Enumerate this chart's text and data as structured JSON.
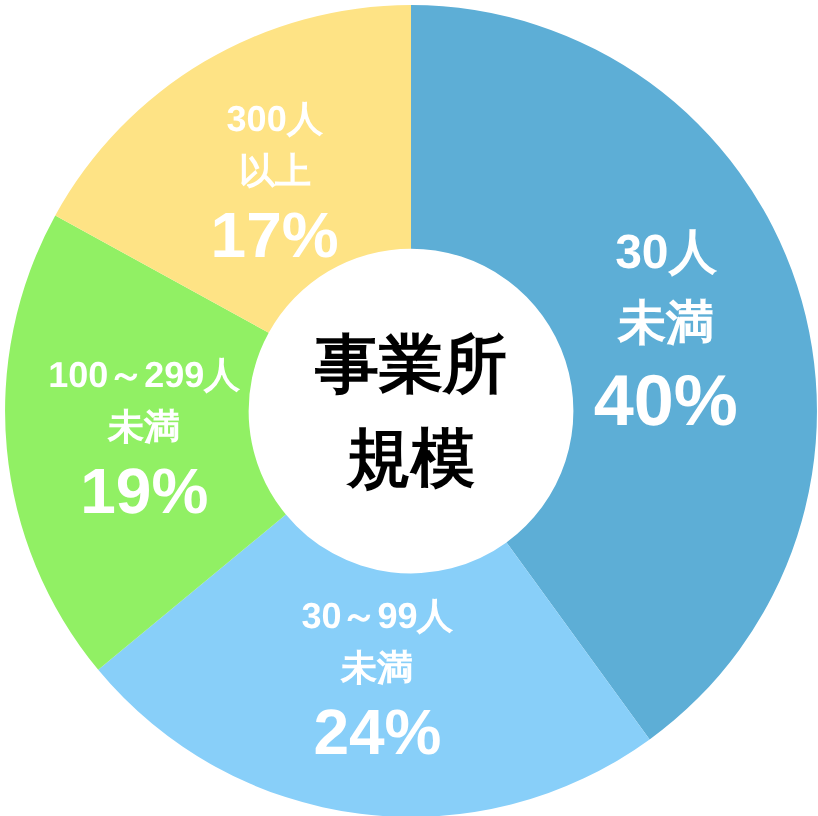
{
  "chart_data": {
    "type": "donut",
    "title": "事業所規模",
    "categories": [
      "30人未満",
      "30～99人未満",
      "100～299人未満",
      "300人以上"
    ],
    "values": [
      40,
      24,
      19,
      17
    ],
    "colors": [
      "#5daed6",
      "#88cff9",
      "#91f064",
      "#fee385"
    ],
    "value_labels": [
      "40%",
      "24%",
      "19%",
      "17%"
    ]
  }
}
